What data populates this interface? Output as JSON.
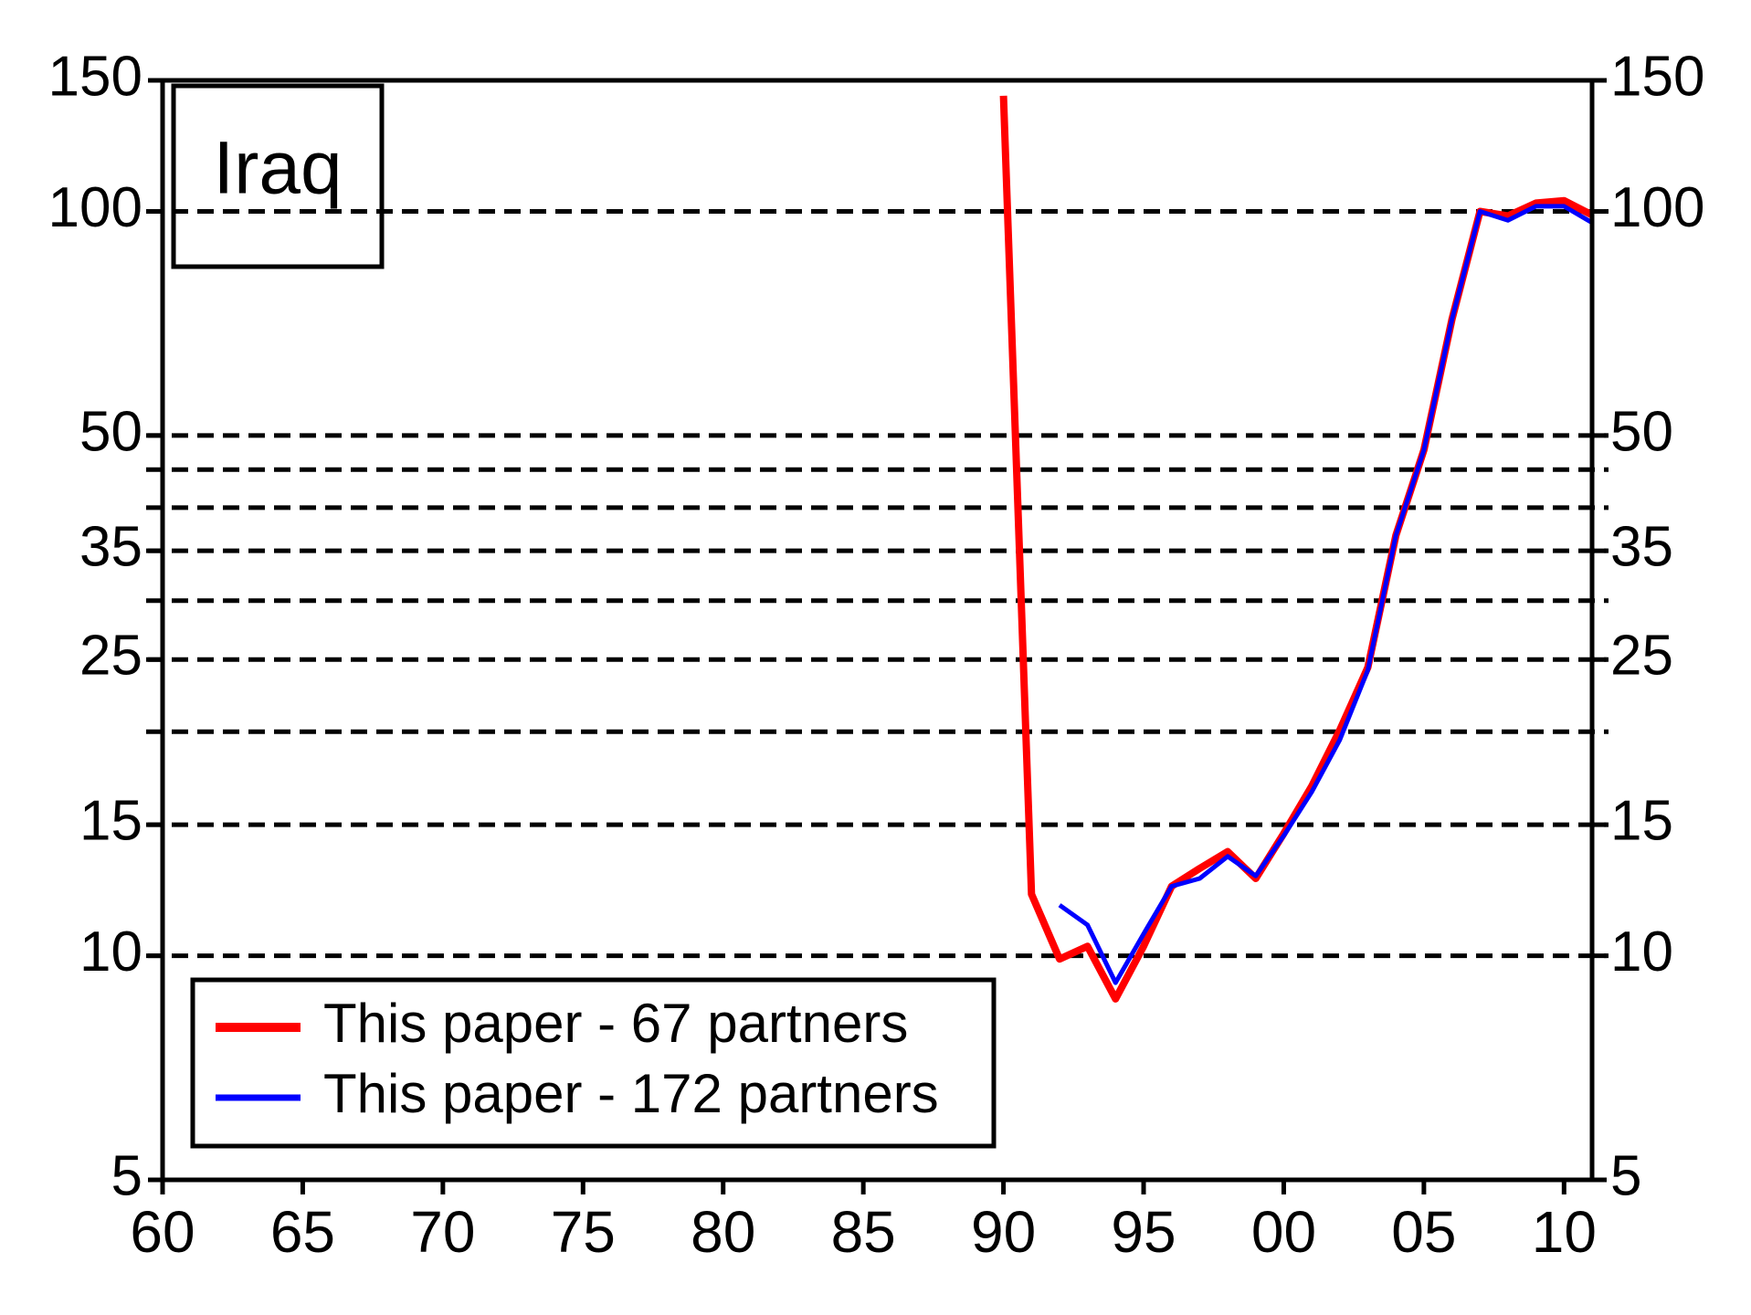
{
  "chart_data": {
    "type": "line",
    "title": "Iraq",
    "x": [
      1990,
      1991,
      1992,
      1993,
      1994,
      1995,
      1996,
      1997,
      1998,
      1999,
      2000,
      2001,
      2002,
      2003,
      2004,
      2005,
      2006,
      2007,
      2008,
      2009,
      2010,
      2011
    ],
    "series": [
      {
        "name": "This paper - 67 partners",
        "color": "#ff0000",
        "values": [
          143,
          12.1,
          9.9,
          10.3,
          8.75,
          10.3,
          12.4,
          13.1,
          13.8,
          12.7,
          14.6,
          16.9,
          20.1,
          24.4,
          36.7,
          47.8,
          71.6,
          100,
          98.6,
          102.6,
          103.4,
          98.9
        ]
      },
      {
        "name": "This paper - 172 partners",
        "color": "#0000ff",
        "values": [
          null,
          null,
          11.7,
          11.0,
          9.2,
          10.7,
          12.4,
          12.7,
          13.6,
          12.8,
          14.5,
          16.6,
          19.5,
          24.2,
          36.7,
          47.8,
          71.6,
          100,
          97.3,
          101.6,
          101.6,
          96.6
        ]
      }
    ],
    "xlim": [
      1960,
      2011
    ],
    "xticks": [
      {
        "value": 1960,
        "label": "60"
      },
      {
        "value": 1965,
        "label": "65"
      },
      {
        "value": 1970,
        "label": "70"
      },
      {
        "value": 1975,
        "label": "75"
      },
      {
        "value": 1980,
        "label": "80"
      },
      {
        "value": 1985,
        "label": "85"
      },
      {
        "value": 1990,
        "label": "90"
      },
      {
        "value": 1995,
        "label": "95"
      },
      {
        "value": 2000,
        "label": "00"
      },
      {
        "value": 2005,
        "label": "05"
      },
      {
        "value": 2010,
        "label": "10"
      }
    ],
    "ylim": [
      5,
      150
    ],
    "yticks": [
      5,
      10,
      15,
      25,
      35,
      50,
      100,
      150
    ],
    "y2lim": [
      5,
      150
    ],
    "y2ticks": [
      5,
      10,
      15,
      25,
      35,
      50,
      100,
      150
    ],
    "log_scale": true,
    "grid_lines": [
      10,
      15,
      20,
      25,
      30,
      35,
      40,
      45,
      50,
      100
    ],
    "legend": "lower left"
  }
}
